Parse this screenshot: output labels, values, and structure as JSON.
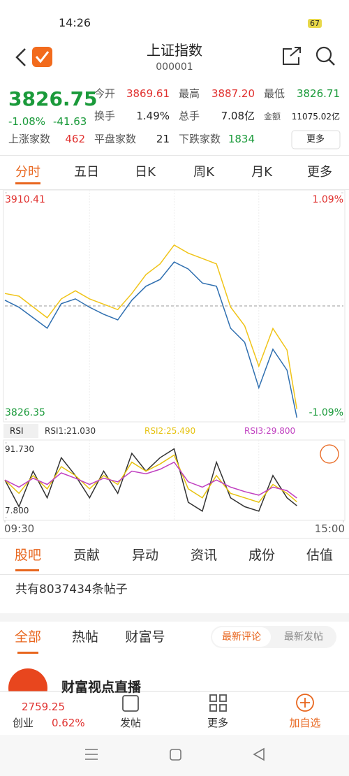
{
  "status": {
    "time": "14:26",
    "battery": "67"
  },
  "header": {
    "title": "上证指数",
    "code": "000001"
  },
  "quote": {
    "price": "3826.75",
    "change_pct": "-1.08%",
    "change": "-41.63",
    "fields": [
      {
        "label": "今开",
        "value": "3869.61"
      },
      {
        "label": "最高",
        "value": "3887.20"
      },
      {
        "label": "最低",
        "value": "3826.71"
      },
      {
        "label": "换手",
        "value": "1.49%"
      },
      {
        "label": "总手",
        "value": "7.08亿"
      },
      {
        "label": "金额",
        "value": "11075.02亿"
      },
      {
        "label": "上涨家数",
        "value": "462"
      },
      {
        "label": "平盘家数",
        "value": "21"
      },
      {
        "label": "下跌家数",
        "value": "1834"
      }
    ],
    "more": "更多"
  },
  "chart_tabs": [
    "分时",
    "五日",
    "日K",
    "周K",
    "月K",
    "更多"
  ],
  "indicator": "RSI",
  "chart_data": [
    {
      "type": "line",
      "x": [
        0,
        10,
        20,
        30,
        40,
        50,
        60,
        70,
        80,
        90,
        100,
        110,
        120,
        130,
        140,
        150,
        160,
        170,
        180,
        190,
        200,
        207
      ],
      "xlim": [
        0,
        240
      ],
      "xticks": [
        {
          "value": 0,
          "label": "09:30"
        },
        {
          "value": 240,
          "label": "15:00"
        }
      ],
      "ylim": [
        3826.35,
        3910.41
      ],
      "yticks": [
        3826.35,
        3910.41
      ],
      "y2lim": [
        -1.09,
        1.09
      ],
      "y2ticks": [
        {
          "value": -1.09,
          "label": "-1.09%"
        },
        {
          "value": 1.09,
          "label": "1.09%"
        }
      ],
      "series": [
        {
          "color": "#f0c419",
          "values": [
            3873,
            3872,
            3868,
            3864,
            3871,
            3874,
            3871,
            3869,
            3867,
            3873,
            3880,
            3884,
            3891,
            3888,
            3886,
            3884,
            3868,
            3861,
            3846,
            3860,
            3852,
            3830
          ]
        },
        {
          "color": "#2f6fb0",
          "values": [
            3870.5,
            3867.9,
            3864,
            3860.1,
            3869.2,
            3871,
            3867.9,
            3865.3,
            3863.2,
            3870.5,
            3875.7,
            3878.2,
            3884.7,
            3882.1,
            3876.9,
            3875.7,
            3860.1,
            3854.9,
            3838,
            3852.3,
            3844.5,
            3826.9
          ]
        }
      ]
    },
    {
      "type": "line",
      "x": [
        0,
        10,
        20,
        30,
        40,
        50,
        60,
        70,
        80,
        90,
        100,
        110,
        120,
        130,
        140,
        150,
        160,
        170,
        180,
        190,
        200,
        207
      ],
      "xlim": [
        0,
        240
      ],
      "ylim": [
        7.8,
        91.73
      ],
      "yticks": [
        {
          "value": 7.8,
          "label": "7.800"
        },
        {
          "value": 91.73,
          "label": "91.730"
        }
      ],
      "series": [
        {
          "name": "RSI1:21.030",
          "color": "#333333",
          "values": [
            50,
            20,
            60,
            30,
            75,
            55,
            30,
            60,
            35,
            80,
            60,
            75,
            85,
            25,
            15,
            70,
            30,
            20,
            15,
            55,
            30,
            21.03
          ]
        },
        {
          "name": "RSI2:25.490",
          "color": "#e6c20f",
          "values": [
            50,
            35,
            55,
            40,
            65,
            55,
            40,
            55,
            45,
            70,
            60,
            68,
            78,
            40,
            30,
            55,
            35,
            30,
            25,
            45,
            35,
            25.49
          ]
        },
        {
          "name": "RSI3:29.800",
          "color": "#c040c0",
          "values": [
            50,
            42,
            52,
            45,
            58,
            52,
            45,
            52,
            48,
            60,
            57,
            62,
            70,
            48,
            42,
            50,
            42,
            37,
            33,
            42,
            38,
            29.8
          ]
        }
      ]
    }
  ],
  "section_tabs": [
    "股吧",
    "贡献",
    "异动",
    "资讯",
    "成份",
    "估值"
  ],
  "post_count": "共有8037434条帖子",
  "feed_tabs": [
    "全部",
    "热帖",
    "财富号"
  ],
  "sort_tabs": [
    "最新评论",
    "最新发帖"
  ],
  "live": "财富视点直播",
  "bottom": {
    "index_value": "2759.25",
    "index_name": "创业",
    "index_pct": "0.62%",
    "actions": [
      "发帖",
      "更多",
      "加自选"
    ]
  }
}
